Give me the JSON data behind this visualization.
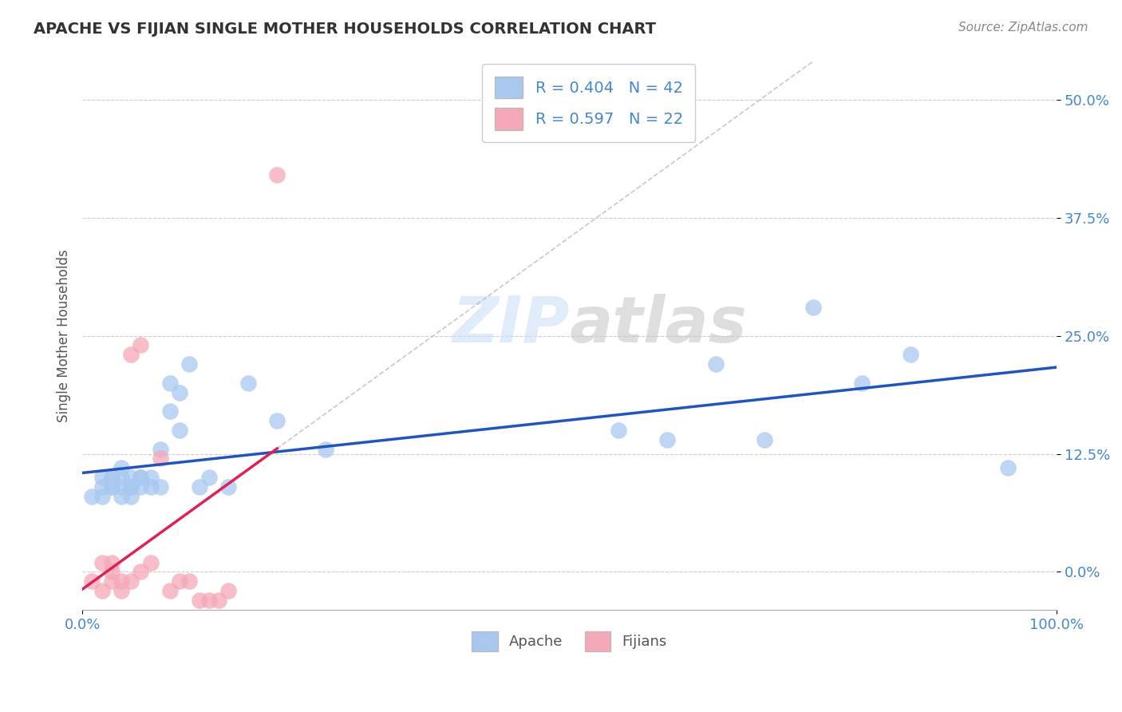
{
  "title": "APACHE VS FIJIAN SINGLE MOTHER HOUSEHOLDS CORRELATION CHART",
  "source": "Source: ZipAtlas.com",
  "xlim": [
    0.0,
    1.0
  ],
  "ylim": [
    -0.04,
    0.54
  ],
  "ytick_vals": [
    0.0,
    0.125,
    0.25,
    0.375,
    0.5
  ],
  "ytick_labels": [
    "0.0%",
    "12.5%",
    "25.0%",
    "37.5%",
    "50.0%"
  ],
  "xtick_vals": [
    0.0,
    1.0
  ],
  "xtick_labels": [
    "0.0%",
    "100.0%"
  ],
  "apache_R": 0.404,
  "apache_N": 42,
  "fijian_R": 0.597,
  "fijian_N": 22,
  "apache_color": "#a8c8f0",
  "fijian_color": "#f5a8b8",
  "apache_line_color": "#2255bb",
  "fijian_line_color": "#dd2255",
  "legend_label_apache": "Apache",
  "legend_label_fijian": "Fijians",
  "watermark_text": "ZIPatlas",
  "apache_scatter_x": [
    0.01,
    0.02,
    0.02,
    0.02,
    0.03,
    0.03,
    0.03,
    0.03,
    0.04,
    0.04,
    0.04,
    0.04,
    0.05,
    0.05,
    0.05,
    0.05,
    0.06,
    0.06,
    0.06,
    0.07,
    0.07,
    0.08,
    0.08,
    0.09,
    0.09,
    0.1,
    0.1,
    0.11,
    0.12,
    0.13,
    0.15,
    0.17,
    0.2,
    0.25,
    0.55,
    0.6,
    0.65,
    0.7,
    0.75,
    0.8,
    0.85,
    0.95
  ],
  "apache_scatter_y": [
    0.08,
    0.09,
    0.1,
    0.08,
    0.09,
    0.1,
    0.1,
    0.09,
    0.1,
    0.09,
    0.11,
    0.08,
    0.09,
    0.1,
    0.09,
    0.08,
    0.1,
    0.09,
    0.1,
    0.1,
    0.09,
    0.13,
    0.09,
    0.2,
    0.17,
    0.19,
    0.15,
    0.22,
    0.09,
    0.1,
    0.09,
    0.2,
    0.16,
    0.13,
    0.15,
    0.14,
    0.22,
    0.14,
    0.28,
    0.2,
    0.23,
    0.11
  ],
  "fijian_scatter_x": [
    0.01,
    0.02,
    0.02,
    0.03,
    0.03,
    0.03,
    0.04,
    0.04,
    0.05,
    0.05,
    0.06,
    0.06,
    0.07,
    0.08,
    0.09,
    0.1,
    0.11,
    0.12,
    0.13,
    0.14,
    0.15,
    0.2
  ],
  "fijian_scatter_y": [
    -0.01,
    -0.02,
    0.01,
    -0.01,
    0.0,
    0.01,
    -0.02,
    -0.01,
    0.23,
    -0.01,
    0.24,
    0.0,
    0.01,
    0.12,
    -0.02,
    -0.01,
    -0.01,
    -0.03,
    -0.03,
    -0.03,
    -0.02,
    0.42
  ],
  "background_color": "#ffffff",
  "grid_color": "#cccccc",
  "tick_color": "#4488cc",
  "title_color": "#333333",
  "source_color": "#888888",
  "ylabel_color": "#555555"
}
